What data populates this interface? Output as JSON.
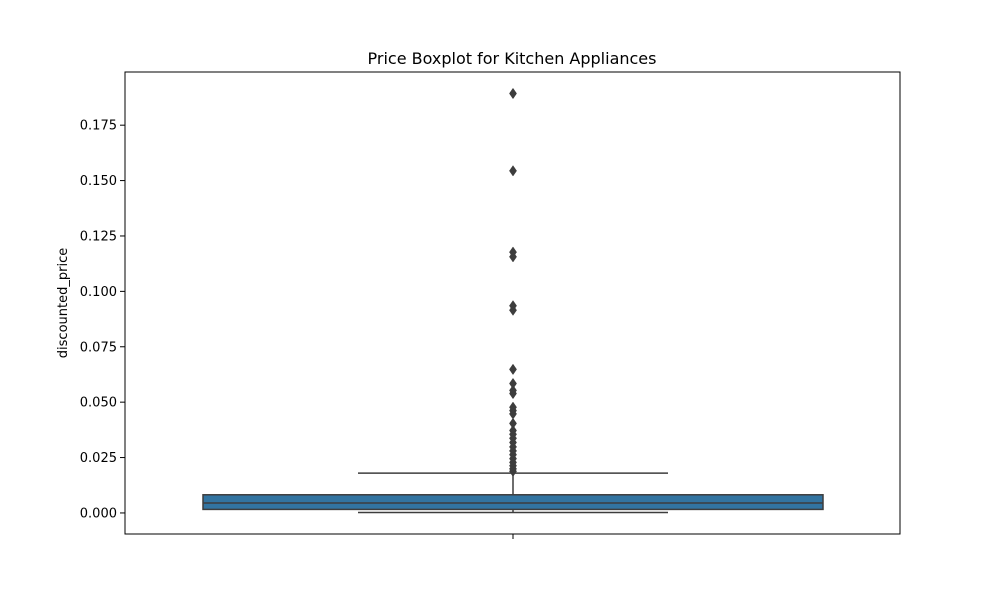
{
  "chart_data": {
    "type": "box",
    "title": "Price Boxplot for Kitchen Appliances",
    "xlabel": "",
    "ylabel": "discounted_price",
    "ylim": [
      -0.0095,
      0.199
    ],
    "yticks": [
      0.0,
      0.025,
      0.05,
      0.075,
      0.1,
      0.125,
      0.15,
      0.175
    ],
    "ytick_labels": [
      "0.000",
      "0.025",
      "0.050",
      "0.075",
      "0.100",
      "0.125",
      "0.150",
      "0.175"
    ],
    "grid": false,
    "box": {
      "whisker_low": 0.0002,
      "q1": 0.0016,
      "median": 0.0045,
      "q3": 0.0082,
      "whisker_high": 0.018,
      "color": "#3274a1",
      "edge_color": "#3d3d3d"
    },
    "outliers": [
      0.1893,
      0.1544,
      0.1177,
      0.1156,
      0.0935,
      0.0915,
      0.0648,
      0.0584,
      0.0553,
      0.0539,
      0.0477,
      0.0462,
      0.0447,
      0.0404,
      0.0372,
      0.0355,
      0.0337,
      0.0318,
      0.0298,
      0.028,
      0.0263,
      0.0245,
      0.0228,
      0.0213,
      0.0199,
      0.0188
    ]
  }
}
